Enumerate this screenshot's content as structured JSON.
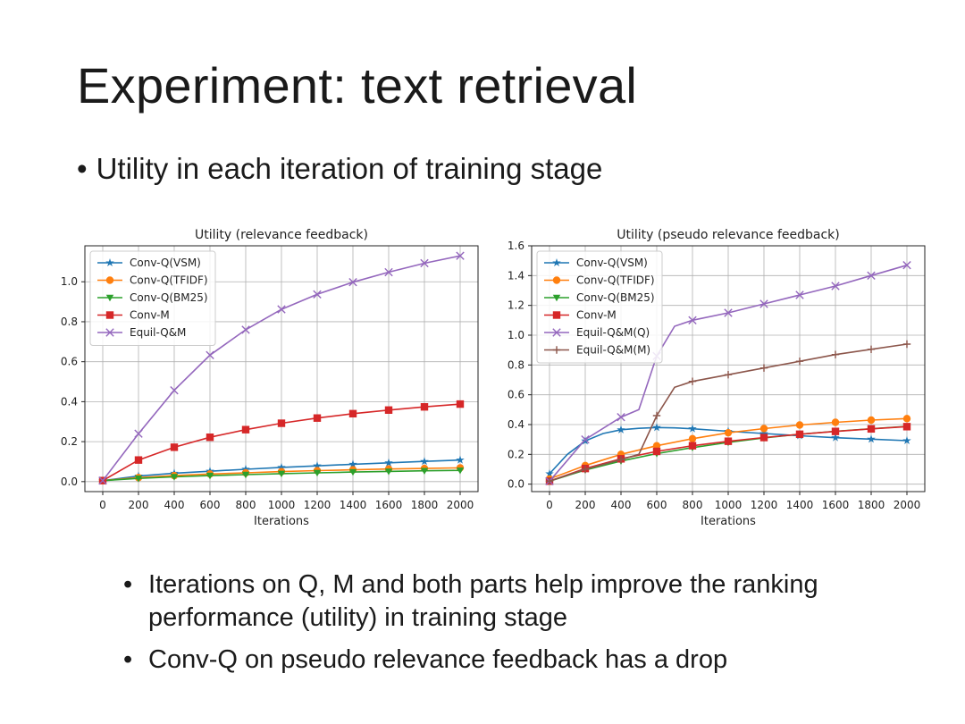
{
  "slide": {
    "title": "Experiment: text retrieval",
    "bullet_top": "Utility in each iteration of training stage",
    "bullets_bottom": [
      "Iterations on Q, M and both parts help improve the ranking performance (utility) in training stage",
      "Conv-Q on pseudo relevance feedback has a drop"
    ]
  },
  "chart_data": [
    {
      "type": "line",
      "title": "Utility (relevance feedback)",
      "xlabel": "Iterations",
      "ylabel": "",
      "xlim": [
        -100,
        2100
      ],
      "ylim": [
        -0.05,
        1.18
      ],
      "xticks": [
        0,
        200,
        400,
        600,
        800,
        1000,
        1200,
        1400,
        1600,
        1800,
        2000
      ],
      "yticks": [
        0.0,
        0.2,
        0.4,
        0.6,
        0.8,
        1.0
      ],
      "ytick_labels": [
        "0.0",
        "0.2",
        "0.4",
        "0.6",
        "0.8",
        "1.0"
      ],
      "grid": true,
      "legend": "top-left",
      "series": [
        {
          "name": "Conv-Q(VSM)",
          "color": "#1f77b4",
          "marker": "star",
          "x": [
            0,
            200,
            400,
            600,
            800,
            1000,
            1200,
            1400,
            1600,
            1800,
            2000
          ],
          "values": [
            0.005,
            0.028,
            0.042,
            0.052,
            0.062,
            0.071,
            0.079,
            0.087,
            0.094,
            0.101,
            0.108
          ]
        },
        {
          "name": "Conv-Q(TFIDF)",
          "color": "#ff7f0e",
          "marker": "circle",
          "x": [
            0,
            200,
            400,
            600,
            800,
            1000,
            1200,
            1400,
            1600,
            1800,
            2000
          ],
          "values": [
            0.005,
            0.02,
            0.03,
            0.038,
            0.044,
            0.05,
            0.055,
            0.059,
            0.063,
            0.066,
            0.069
          ]
        },
        {
          "name": "Conv-Q(BM25)",
          "color": "#2ca02c",
          "marker": "triangle-down",
          "x": [
            0,
            200,
            400,
            600,
            800,
            1000,
            1200,
            1400,
            1600,
            1800,
            2000
          ],
          "values": [
            0.005,
            0.016,
            0.024,
            0.03,
            0.035,
            0.04,
            0.044,
            0.048,
            0.051,
            0.054,
            0.056
          ]
        },
        {
          "name": "Conv-M",
          "color": "#d62728",
          "marker": "square",
          "x": [
            0,
            200,
            400,
            600,
            800,
            1000,
            1200,
            1400,
            1600,
            1800,
            2000
          ],
          "values": [
            0.005,
            0.108,
            0.172,
            0.222,
            0.26,
            0.292,
            0.318,
            0.34,
            0.358,
            0.374,
            0.388
          ]
        },
        {
          "name": "Equil-Q&M",
          "color": "#9467bd",
          "marker": "x",
          "x": [
            0,
            200,
            400,
            600,
            800,
            1000,
            1200,
            1400,
            1600,
            1800,
            2000
          ],
          "values": [
            0.005,
            0.24,
            0.457,
            0.633,
            0.76,
            0.862,
            0.937,
            0.998,
            1.048,
            1.093,
            1.13
          ]
        }
      ]
    },
    {
      "type": "line",
      "title": "Utility (pseudo relevance feedback)",
      "xlabel": "Iterations",
      "ylabel": "",
      "xlim": [
        -100,
        2100
      ],
      "ylim": [
        -0.05,
        1.6
      ],
      "xticks": [
        0,
        200,
        400,
        600,
        800,
        1000,
        1200,
        1400,
        1600,
        1800,
        2000
      ],
      "yticks": [
        0.0,
        0.2,
        0.4,
        0.6,
        0.8,
        1.0,
        1.2,
        1.4,
        1.6
      ],
      "ytick_labels": [
        "0.0",
        "0.2",
        "0.4",
        "0.6",
        "0.8",
        "1.0",
        "1.2",
        "1.4",
        "1.6"
      ],
      "grid": true,
      "legend": "top-left",
      "series": [
        {
          "name": "Conv-Q(VSM)",
          "color": "#1f77b4",
          "marker": "star",
          "x": [
            0,
            100,
            200,
            300,
            400,
            500,
            600,
            700,
            800,
            1000,
            1200,
            1400,
            1600,
            1800,
            2000
          ],
          "values": [
            0.07,
            0.2,
            0.29,
            0.34,
            0.365,
            0.375,
            0.38,
            0.378,
            0.372,
            0.355,
            0.34,
            0.325,
            0.312,
            0.302,
            0.292
          ]
        },
        {
          "name": "Conv-Q(TFIDF)",
          "color": "#ff7f0e",
          "marker": "circle",
          "x": [
            0,
            200,
            400,
            600,
            800,
            1000,
            1200,
            1400,
            1600,
            1800,
            2000
          ],
          "values": [
            0.035,
            0.125,
            0.2,
            0.258,
            0.305,
            0.345,
            0.373,
            0.397,
            0.415,
            0.43,
            0.44
          ]
        },
        {
          "name": "Conv-Q(BM25)",
          "color": "#2ca02c",
          "marker": "triangle-down",
          "x": [
            0,
            200,
            400,
            600,
            800,
            1000,
            1200,
            1400,
            1600,
            1800,
            2000
          ],
          "values": [
            0.02,
            0.095,
            0.155,
            0.205,
            0.245,
            0.28,
            0.31,
            0.335,
            0.355,
            0.372,
            0.388
          ]
        },
        {
          "name": "Conv-M",
          "color": "#d62728",
          "marker": "square",
          "x": [
            0,
            200,
            400,
            600,
            800,
            1000,
            1200,
            1400,
            1600,
            1800,
            2000
          ],
          "values": [
            0.02,
            0.105,
            0.17,
            0.22,
            0.258,
            0.288,
            0.313,
            0.335,
            0.354,
            0.371,
            0.386
          ]
        },
        {
          "name": "Equil-Q&M(Q)",
          "color": "#9467bd",
          "marker": "x",
          "x": [
            0,
            200,
            400,
            500,
            600,
            700,
            800,
            1000,
            1200,
            1400,
            1600,
            1800,
            2000
          ],
          "values": [
            0.02,
            0.3,
            0.45,
            0.5,
            0.86,
            1.06,
            1.1,
            1.15,
            1.21,
            1.27,
            1.33,
            1.4,
            1.47
          ]
        },
        {
          "name": "Equil-Q&M(M)",
          "color": "#8c564b",
          "marker": "plus",
          "x": [
            0,
            200,
            400,
            500,
            600,
            700,
            800,
            1000,
            1200,
            1400,
            1600,
            1800,
            2000
          ],
          "values": [
            0.02,
            0.1,
            0.165,
            0.2,
            0.46,
            0.65,
            0.69,
            0.735,
            0.78,
            0.825,
            0.87,
            0.905,
            0.94
          ]
        }
      ]
    }
  ]
}
